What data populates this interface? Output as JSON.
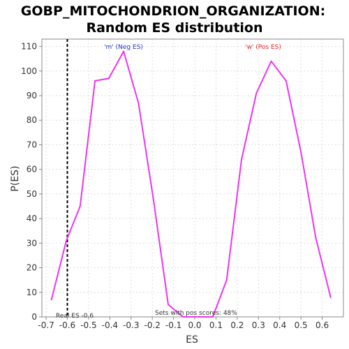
{
  "chart_data": {
    "type": "line",
    "title_line1": "GOBP_MITOCHONDRION_ORGANIZATION:",
    "title_line2": "Random ES distribution",
    "xlabel": "ES",
    "ylabel": "P(ES)",
    "xlim": [
      -0.72,
      0.7
    ],
    "ylim": [
      0,
      113
    ],
    "xticks": [
      -0.7,
      -0.6,
      -0.5,
      -0.4,
      -0.3,
      -0.2,
      -0.1,
      0.0,
      0.1,
      0.2,
      0.3,
      0.4,
      0.5,
      0.6
    ],
    "xtick_labels": [
      "-0.7",
      "-0.6",
      "-0.5",
      "-0.4",
      "-0.3",
      "-0.2",
      "-0.1",
      "0.0",
      "0.1",
      "0.2",
      "0.3",
      "0.4",
      "0.5",
      "0.6"
    ],
    "yticks": [
      0,
      10,
      20,
      30,
      40,
      50,
      60,
      70,
      80,
      90,
      100,
      110
    ],
    "ytick_labels": [
      "0",
      "10",
      "20",
      "30",
      "40",
      "50",
      "60",
      "70",
      "80",
      "90",
      "100",
      "110"
    ],
    "grid": true,
    "series": [
      {
        "color": "#ee33ee",
        "x": [
          -0.675,
          -0.605,
          -0.54,
          -0.47,
          -0.405,
          -0.335,
          -0.265,
          -0.195,
          -0.125,
          -0.055,
          0.015,
          0.085,
          0.15,
          0.22,
          0.29,
          0.36,
          0.43,
          0.5,
          0.57,
          0.64
        ],
        "y": [
          7,
          31,
          45,
          96,
          97,
          108,
          87,
          48,
          5,
          0,
          0,
          0,
          15,
          64,
          91,
          104,
          96,
          67,
          32,
          8
        ]
      }
    ],
    "real_es": -0.6,
    "annotations": {
      "neg_label": "'m' (Neg ES)",
      "pos_label": "'w' (Pos ES)",
      "real_es_label": "Real ES -0.6",
      "pos_scores_label": "Sets with pos scores: 48%"
    },
    "colors": {
      "line": "#ee33ee",
      "neg_label": "#2233cc",
      "pos_label": "#ee2222",
      "real_es_line": "#000000",
      "grid": "#dddddd"
    }
  }
}
